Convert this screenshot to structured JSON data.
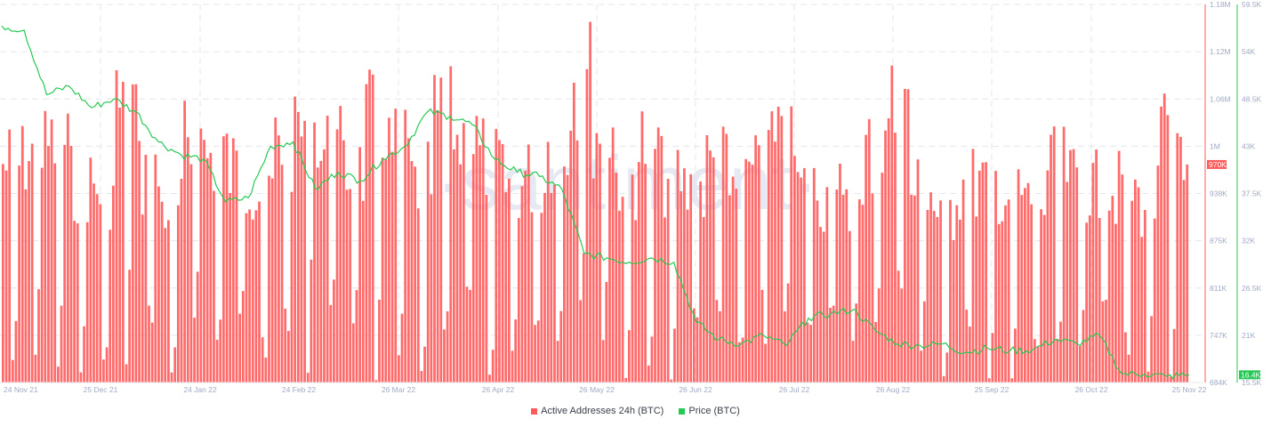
{
  "watermark": "·santiment·",
  "legend": {
    "items": [
      {
        "label": "Active Addresses 24h (BTC)",
        "color": "#ff5b5b"
      },
      {
        "label": "Price (BTC)",
        "color": "#26c953"
      }
    ]
  },
  "axes": {
    "left_axis": {
      "color": "#ff5b5b",
      "ticks": [
        "1.18M",
        "1.12M",
        "1.06M",
        "1M",
        "938K",
        "875K",
        "811K",
        "747K",
        "684K"
      ],
      "current_value_badge": "970K"
    },
    "right_axis": {
      "color": "#26c953",
      "ticks": [
        "59.5K",
        "54K",
        "48.5K",
        "43K",
        "37.5K",
        "32K",
        "26.5K",
        "21K",
        "15.5K"
      ],
      "current_value_badge": "16.4K"
    },
    "x_ticks": [
      "24 Nov 21",
      "25 Dec 21",
      "24 Jan 22",
      "24 Feb 22",
      "26 Mar 22",
      "26 Apr 22",
      "26 May 22",
      "26 Jun 22",
      "26 Jul 22",
      "26 Aug 22",
      "25 Sep 22",
      "26 Oct 22",
      "25 Nov 22"
    ]
  },
  "chart_data": {
    "type": "bar+line",
    "title": "",
    "xlabel": "",
    "x_range": [
      "24 Nov 21",
      "25 Nov 22"
    ],
    "x_tick_labels": [
      "24 Nov 21",
      "25 Dec 21",
      "24 Jan 22",
      "24 Feb 22",
      "26 Mar 22",
      "26 Apr 22",
      "26 May 22",
      "26 Jun 22",
      "26 Jul 22",
      "26 Aug 22",
      "25 Sep 22",
      "26 Oct 22",
      "25 Nov 22"
    ],
    "grid": true,
    "legend_position": "bottom-center",
    "series": [
      {
        "name": "Active Addresses 24h (BTC)",
        "type": "bar",
        "axis": "left",
        "color": "#ff5b5b",
        "ylim": [
          684000,
          1180000
        ],
        "last_value": 970000,
        "weekly_values_approx_k": [
          1030,
          1050,
          1060,
          1000,
          990,
          1130,
          1010,
          960,
          1060,
          1040,
          1020,
          990,
          1060,
          1090,
          1050,
          1020,
          1100,
          1050,
          1000,
          1100,
          1070,
          1040,
          1000,
          1010,
          1060,
          1170,
          1090,
          1010,
          1060,
          1010,
          990,
          1030,
          980,
          1070,
          1050,
          990,
          980,
          950,
          1050,
          1120,
          990,
          960,
          1000,
          1000,
          980,
          970,
          1020,
          1000,
          990,
          990,
          970,
          1080,
          1010,
          970
        ]
      },
      {
        "name": "Price (BTC)",
        "type": "line",
        "axis": "right",
        "color": "#26c953",
        "ylim": [
          15500,
          59500
        ],
        "last_value": 16400,
        "weekly_values_approx": [
          57000,
          56500,
          49000,
          50000,
          47500,
          48500,
          47000,
          43500,
          42000,
          41500,
          36500,
          37000,
          43000,
          43500,
          38000,
          40000,
          39000,
          41500,
          43000,
          47000,
          46500,
          45500,
          41500,
          40000,
          39500,
          38000,
          30500,
          30000,
          29500,
          30000,
          29500,
          22500,
          20500,
          20000,
          21000,
          19800,
          23000,
          23500,
          24000,
          21500,
          20000,
          19800,
          20000,
          19000,
          19500,
          19200,
          19300,
          20500,
          20000,
          21000,
          16500,
          16500,
          16200,
          16400
        ]
      }
    ]
  }
}
